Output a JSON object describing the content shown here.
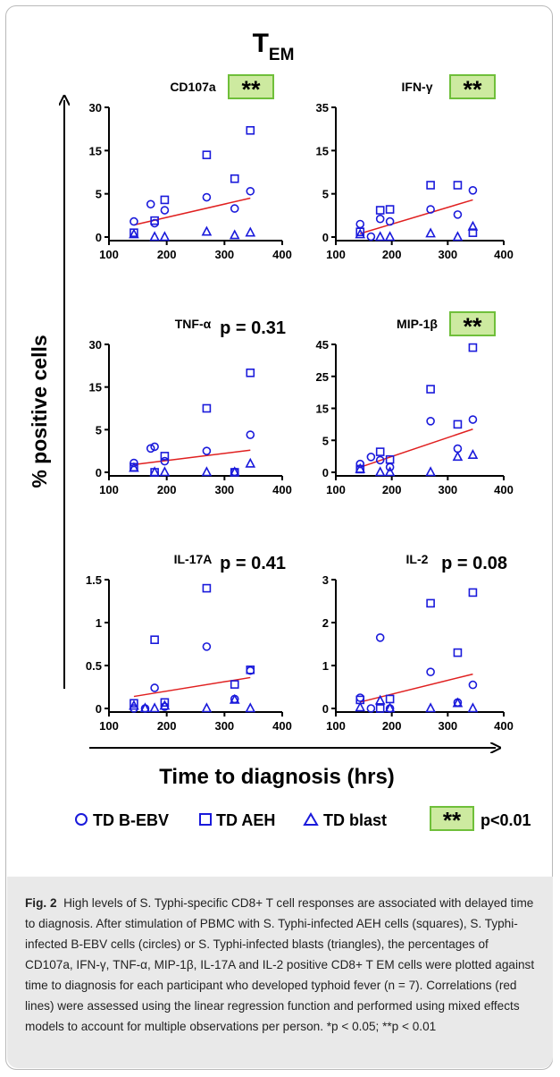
{
  "figure": {
    "main_title": "T",
    "main_title_sub": "EM",
    "y_axis_title": "% positive cells",
    "x_axis_title": "Time to diagnosis (hrs)",
    "significance_text": "**"
  },
  "legend": {
    "items": [
      {
        "label": "TD B-EBV",
        "marker": "circle"
      },
      {
        "label": "TD AEH",
        "marker": "square"
      },
      {
        "label": "TD blast",
        "marker": "triangle"
      }
    ],
    "sig_label": "p<0.01"
  },
  "colors": {
    "marker": "#1a1adb",
    "regression": "#e02020",
    "sig_fill": "#cdeaa0",
    "sig_border": "#6fbf3a",
    "axis": "#000000"
  },
  "chart_data": [
    {
      "type": "scatter",
      "title": "CD107a",
      "stat": "**",
      "xlim": [
        100,
        400
      ],
      "xticks": [
        "100",
        "200",
        "300",
        "400"
      ],
      "yticks": [
        {
          "v": 0,
          "label": "0"
        },
        {
          "v": 5,
          "label": "5"
        },
        {
          "v": 15,
          "label": "15"
        },
        {
          "v": 30,
          "label": "30"
        }
      ],
      "series": [
        {
          "name": "TD B-EBV",
          "marker": "circle",
          "points": [
            [
              135,
              1.8
            ],
            [
              165,
              3.8
            ],
            [
              172,
              1.6
            ],
            [
              190,
              3.1
            ],
            [
              265,
              4.6
            ],
            [
              315,
              3.3
            ],
            [
              343,
              5.6
            ]
          ]
        },
        {
          "name": "TD AEH",
          "marker": "square",
          "points": [
            [
              135,
              0.5
            ],
            [
              172,
              1.9
            ],
            [
              190,
              4.3
            ],
            [
              265,
              14
            ],
            [
              315,
              8.5
            ],
            [
              343,
              22
            ]
          ]
        },
        {
          "name": "TD blast",
          "marker": "triangle",
          "points": [
            [
              135,
              0.3
            ],
            [
              172,
              0
            ],
            [
              190,
              0
            ],
            [
              265,
              0.6
            ],
            [
              315,
              0.2
            ],
            [
              343,
              0.5
            ]
          ]
        }
      ],
      "regression": [
        [
          135,
          1.4
        ],
        [
          343,
          4.5
        ]
      ]
    },
    {
      "type": "scatter",
      "title": "IFN-γ",
      "stat": "**",
      "xlim": [
        100,
        400
      ],
      "xticks": [
        "100",
        "200",
        "300",
        "400"
      ],
      "yticks": [
        {
          "v": 0,
          "label": "0"
        },
        {
          "v": 5,
          "label": "5"
        },
        {
          "v": 15,
          "label": "15"
        },
        {
          "v": 35,
          "label": "35"
        }
      ],
      "series": [
        {
          "name": "TD B-EBV",
          "marker": "circle",
          "points": [
            [
              135,
              1.5
            ],
            [
              155,
              0.05
            ],
            [
              172,
              2.1
            ],
            [
              190,
              1.8
            ],
            [
              265,
              3.2
            ],
            [
              315,
              2.6
            ],
            [
              343,
              5.8
            ]
          ]
        },
        {
          "name": "TD AEH",
          "marker": "square",
          "points": [
            [
              135,
              0.6
            ],
            [
              172,
              3.1
            ],
            [
              190,
              3.2
            ],
            [
              265,
              7
            ],
            [
              315,
              7
            ],
            [
              343,
              0.5
            ]
          ]
        },
        {
          "name": "TD blast",
          "marker": "triangle",
          "points": [
            [
              135,
              0.3
            ],
            [
              172,
              0
            ],
            [
              190,
              0
            ],
            [
              265,
              0.4
            ],
            [
              315,
              0
            ],
            [
              343,
              1.2
            ]
          ]
        }
      ],
      "regression": [
        [
          135,
          0.4
        ],
        [
          343,
          4.3
        ]
      ]
    },
    {
      "type": "scatter",
      "title": "TNF-α",
      "stat": "p = 0.31",
      "xlim": [
        100,
        400
      ],
      "xticks": [
        "100",
        "200",
        "300",
        "400"
      ],
      "yticks": [
        {
          "v": 0,
          "label": "0"
        },
        {
          "v": 5,
          "label": "5"
        },
        {
          "v": 15,
          "label": "15"
        },
        {
          "v": 30,
          "label": "30"
        }
      ],
      "series": [
        {
          "name": "TD B-EBV",
          "marker": "circle",
          "points": [
            [
              135,
              1.1
            ],
            [
              165,
              2.8
            ],
            [
              172,
              3.0
            ],
            [
              190,
              1.3
            ],
            [
              265,
              2.5
            ],
            [
              315,
              0.05
            ],
            [
              343,
              4.4
            ]
          ]
        },
        {
          "name": "TD AEH",
          "marker": "square",
          "points": [
            [
              135,
              0.6
            ],
            [
              172,
              0
            ],
            [
              190,
              1.9
            ],
            [
              265,
              10
            ],
            [
              315,
              0
            ],
            [
              343,
              20
            ]
          ]
        },
        {
          "name": "TD blast",
          "marker": "triangle",
          "points": [
            [
              135,
              0.5
            ],
            [
              172,
              0
            ],
            [
              190,
              0
            ],
            [
              265,
              0
            ],
            [
              315,
              0
            ],
            [
              343,
              1
            ]
          ]
        }
      ],
      "regression": [
        [
          135,
          0.9
        ],
        [
          343,
          2.6
        ]
      ]
    },
    {
      "type": "scatter",
      "title": "MIP-1β",
      "stat": "**",
      "xlim": [
        100,
        400
      ],
      "xticks": [
        "100",
        "200",
        "300",
        "400"
      ],
      "yticks": [
        {
          "v": 0,
          "label": "0"
        },
        {
          "v": 5,
          "label": "5"
        },
        {
          "v": 15,
          "label": "15"
        },
        {
          "v": 25,
          "label": "25"
        },
        {
          "v": 45,
          "label": "45"
        }
      ],
      "series": [
        {
          "name": "TD B-EBV",
          "marker": "circle",
          "points": [
            [
              135,
              1.3
            ],
            [
              155,
              2.4
            ],
            [
              172,
              1.9
            ],
            [
              190,
              0.8
            ],
            [
              265,
              11
            ],
            [
              315,
              3.7
            ],
            [
              343,
              11.5
            ]
          ]
        },
        {
          "name": "TD AEH",
          "marker": "square",
          "points": [
            [
              135,
              0.5
            ],
            [
              172,
              3.2
            ],
            [
              190,
              2.0
            ],
            [
              265,
              21
            ],
            [
              315,
              10
            ],
            [
              343,
              43
            ]
          ]
        },
        {
          "name": "TD blast",
          "marker": "triangle",
          "points": [
            [
              135,
              0.5
            ],
            [
              172,
              0
            ],
            [
              190,
              0
            ],
            [
              265,
              0
            ],
            [
              315,
              2.4
            ],
            [
              343,
              2.7
            ]
          ]
        }
      ],
      "regression": [
        [
          135,
          0.8
        ],
        [
          343,
          8.5
        ]
      ]
    },
    {
      "type": "scatter",
      "title": "IL-17A",
      "stat": "p = 0.41",
      "xlim": [
        100,
        400
      ],
      "xticks": [
        "100",
        "200",
        "300",
        "400"
      ],
      "yticks": [
        {
          "v": 0,
          "label": "0"
        },
        {
          "v": 0.5,
          "label": "0.5"
        },
        {
          "v": 1,
          "label": "1"
        },
        {
          "v": 1.5,
          "label": "1.5"
        }
      ],
      "series": [
        {
          "name": "TD B-EBV",
          "marker": "circle",
          "points": [
            [
              135,
              0
            ],
            [
              155,
              0
            ],
            [
              172,
              0.24
            ],
            [
              190,
              0.02
            ],
            [
              265,
              0.72
            ],
            [
              315,
              0.11
            ],
            [
              343,
              0.44
            ]
          ]
        },
        {
          "name": "TD AEH",
          "marker": "square",
          "points": [
            [
              135,
              0.06
            ],
            [
              172,
              0.8
            ],
            [
              190,
              0.07
            ],
            [
              265,
              1.4
            ],
            [
              315,
              0.28
            ],
            [
              343,
              0.45
            ]
          ]
        },
        {
          "name": "TD blast",
          "marker": "triangle",
          "points": [
            [
              135,
              0.03
            ],
            [
              155,
              0
            ],
            [
              172,
              0
            ],
            [
              190,
              0.03
            ],
            [
              265,
              0
            ],
            [
              315,
              0.1
            ],
            [
              343,
              0
            ]
          ]
        }
      ],
      "regression": [
        [
          135,
          0.14
        ],
        [
          343,
          0.36
        ]
      ]
    },
    {
      "type": "scatter",
      "title": "IL-2",
      "stat": "p = 0.08",
      "xlim": [
        100,
        400
      ],
      "xticks": [
        "100",
        "200",
        "300",
        "400"
      ],
      "yticks": [
        {
          "v": 0,
          "label": "0"
        },
        {
          "v": 1,
          "label": "1"
        },
        {
          "v": 2,
          "label": "2"
        },
        {
          "v": 3,
          "label": "3"
        }
      ],
      "series": [
        {
          "name": "TD B-EBV",
          "marker": "circle",
          "points": [
            [
              135,
              0.25
            ],
            [
              155,
              0
            ],
            [
              172,
              1.65
            ],
            [
              190,
              0
            ],
            [
              265,
              0.85
            ],
            [
              315,
              0.14
            ],
            [
              343,
              0.55
            ]
          ]
        },
        {
          "name": "TD AEH",
          "marker": "square",
          "points": [
            [
              135,
              0.2
            ],
            [
              172,
              0
            ],
            [
              190,
              0.22
            ],
            [
              265,
              2.45
            ],
            [
              315,
              1.3
            ],
            [
              343,
              2.7
            ]
          ]
        },
        {
          "name": "TD blast",
          "marker": "triangle",
          "points": [
            [
              135,
              0.02
            ],
            [
              172,
              0.18
            ],
            [
              190,
              0
            ],
            [
              265,
              0
            ],
            [
              315,
              0.12
            ],
            [
              343,
              0
            ]
          ]
        }
      ],
      "regression": [
        [
          135,
          0.15
        ],
        [
          343,
          0.8
        ]
      ]
    }
  ],
  "caption": {
    "fig_label": "Fig. 2",
    "text": "High levels of S. Typhi-specific CD8+ T cell responses are associated with delayed time to diagnosis. After stimulation of PBMC with S. Typhi-infected AEH cells (squares), S. Typhi-infected B-EBV cells (circles) or S. Typhi-infected blasts (triangles), the percentages of CD107a, IFN-γ, TNF-α, MIP-1β, IL-17A and IL-2 positive CD8+ T EM cells were plotted against time to diagnosis for each participant who developed typhoid fever (n = 7). Correlations (red lines) were assessed using the linear regression function and performed using mixed effects models to account for multiple observations per person. *p < 0.05; **p < 0.01"
  }
}
